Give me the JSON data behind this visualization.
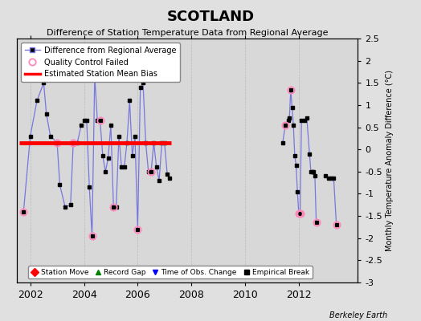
{
  "title": "SCOTLAND",
  "subtitle": "Difference of Station Temperature Data from Regional Average",
  "ylabel_right": "Monthly Temperature Anomaly Difference (°C)",
  "credit": "Berkeley Earth",
  "ylim": [
    -3,
    2.5
  ],
  "yticks": [
    -3,
    -2.5,
    -2,
    -1.5,
    -1,
    -0.5,
    0,
    0.5,
    1,
    1.5,
    2,
    2.5
  ],
  "xlim": [
    2001.5,
    2014.2
  ],
  "xticks": [
    2002,
    2004,
    2006,
    2008,
    2010,
    2012
  ],
  "bias_level": 0.15,
  "bias_x_start": 2001.6,
  "bias_x_end": 2007.25,
  "line_color": "#7777dd",
  "marker_color": "#000000",
  "qc_color": "#ff88bb",
  "bias_color": "#ff0000",
  "bg_color": "#e0e0e0",
  "plot_bg_color": "#d8d8d8",
  "segments": [
    [
      [
        2001.75,
        2002.0,
        2002.25,
        2002.5,
        2002.6,
        2002.75,
        2003.0,
        2003.1,
        2003.3,
        2003.5,
        2003.6,
        2003.75,
        2003.9
      ],
      [
        -1.4,
        0.3,
        1.1,
        1.5,
        0.8,
        0.3,
        0.15,
        -0.8,
        -1.3,
        -1.25,
        0.15,
        0.15,
        0.55
      ]
    ],
    [
      [
        2004.0,
        2004.1,
        2004.2,
        2004.3,
        2004.4,
        2004.5,
        2004.6,
        2004.7,
        2004.8,
        2004.9,
        2005.0,
        2005.1,
        2005.2,
        2005.3,
        2005.4,
        2005.5,
        2005.6,
        2005.7,
        2005.8,
        2005.9,
        2006.0,
        2006.1,
        2006.2,
        2006.3,
        2006.4,
        2006.5,
        2006.6,
        2006.7,
        2006.8,
        2006.9,
        2007.0,
        2007.1,
        2007.2
      ],
      [
        0.65,
        0.65,
        -0.85,
        -1.95,
        1.65,
        0.65,
        0.65,
        -0.15,
        -0.5,
        -0.2,
        0.55,
        -1.3,
        -1.3,
        0.3,
        -0.4,
        -0.4,
        0.15,
        1.1,
        -0.15,
        0.3,
        -1.8,
        1.4,
        1.5,
        0.15,
        -0.5,
        -0.5,
        0.15,
        -0.4,
        -0.7,
        0.15,
        0.15,
        -0.55,
        -0.65
      ]
    ],
    [
      [
        2011.4,
        2011.5,
        2011.6,
        2011.65,
        2011.7,
        2011.75,
        2011.8,
        2011.85,
        2011.9,
        2011.95,
        2012.0,
        2012.05,
        2012.1,
        2012.2,
        2012.3,
        2012.4,
        2012.45,
        2012.5,
        2012.55,
        2012.6,
        2012.65
      ],
      [
        0.15,
        0.55,
        0.65,
        0.7,
        1.35,
        0.95,
        0.55,
        -0.15,
        -0.35,
        -0.95,
        -1.45,
        -1.45,
        0.65,
        0.65,
        0.7,
        -0.1,
        -0.5,
        -0.5,
        -0.5,
        -0.6,
        -1.65
      ]
    ],
    [
      [
        2013.0,
        2013.1,
        2013.2,
        2013.3,
        2013.4
      ],
      [
        -0.6,
        -0.65,
        -0.65,
        -0.65,
        -1.7
      ]
    ]
  ],
  "qc_failed_points": [
    [
      2001.75,
      -1.4
    ],
    [
      2003.0,
      0.15
    ],
    [
      2003.6,
      0.15
    ],
    [
      2004.3,
      -1.95
    ],
    [
      2004.6,
      0.65
    ],
    [
      2005.1,
      -1.3
    ],
    [
      2006.0,
      -1.8
    ],
    [
      2006.5,
      -0.5
    ],
    [
      2011.5,
      0.55
    ],
    [
      2011.7,
      1.35
    ],
    [
      2012.0,
      -1.45
    ],
    [
      2012.05,
      -1.45
    ],
    [
      2012.65,
      -1.65
    ],
    [
      2013.4,
      -1.7
    ]
  ]
}
